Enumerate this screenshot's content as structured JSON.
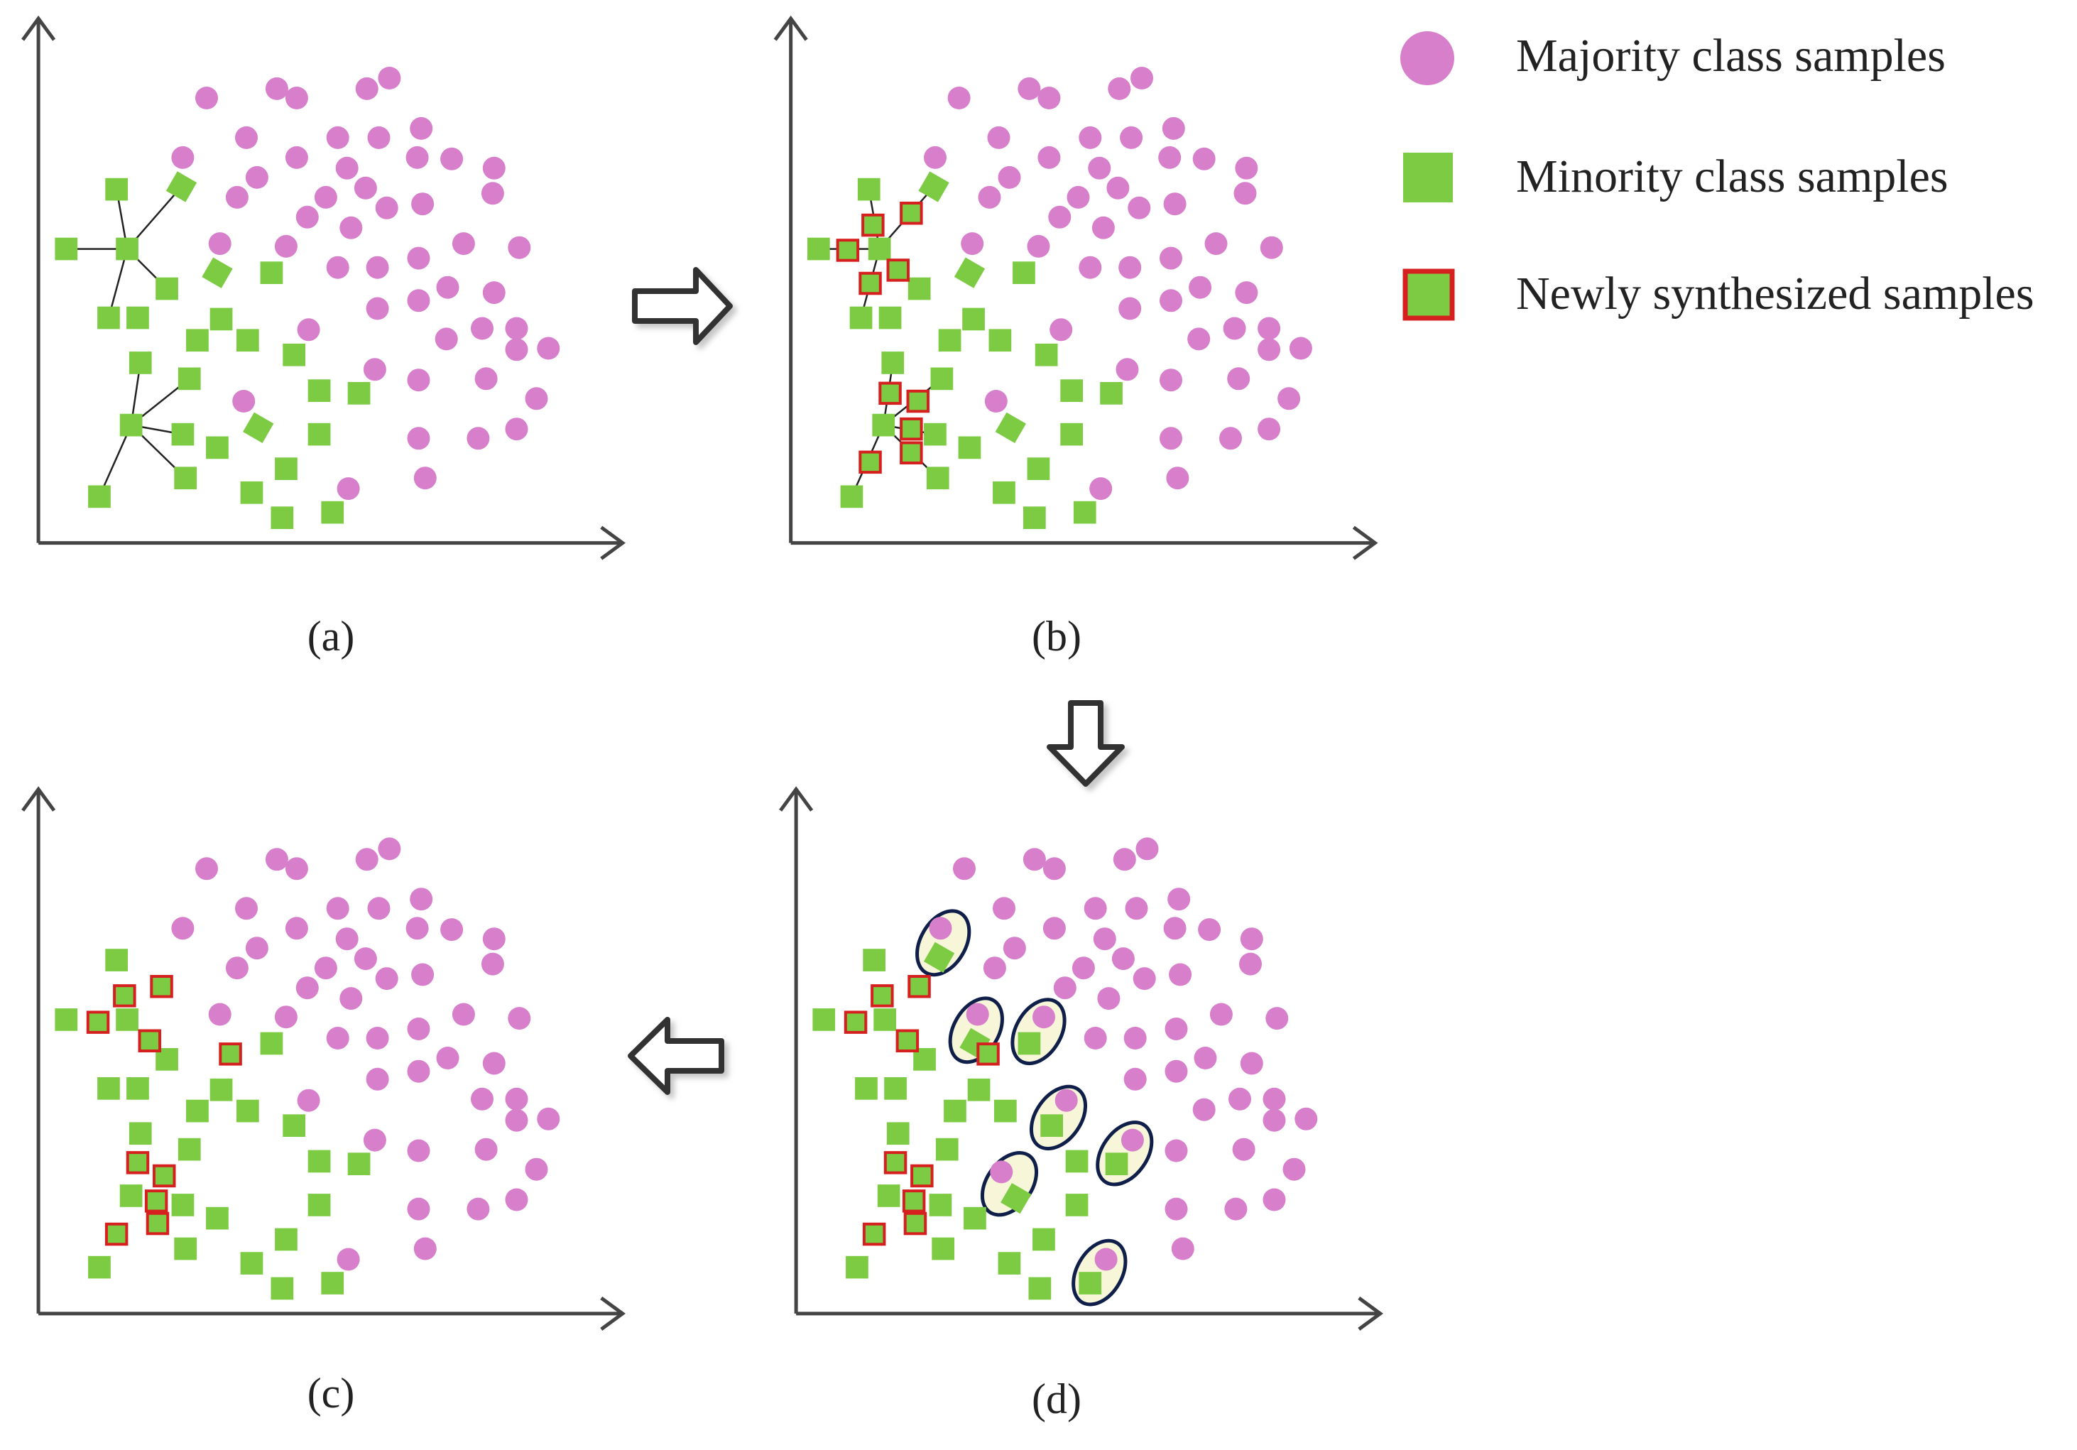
{
  "colors": {
    "majority": "#d77fcb",
    "minority": "#7ccb43",
    "synthetic_border": "#d62020",
    "axis": "#444444",
    "link": "#222222",
    "ellipse_stroke": "#0f1f4a",
    "ellipse_fill": "#f7f6d8",
    "arrow_stroke": "#333333"
  },
  "legend": {
    "majority_label": "Majority class samples",
    "minority_label": "Minority class samples",
    "synthetic_label": "Newly synthesized samples"
  },
  "panels": {
    "a": {
      "caption": "(a)"
    },
    "b": {
      "caption": "(b)"
    },
    "c": {
      "caption": "(c)"
    },
    "d": {
      "caption": "(d)"
    }
  },
  "flow": [
    "(a)",
    "(b)",
    "(d)",
    "(c)"
  ]
}
